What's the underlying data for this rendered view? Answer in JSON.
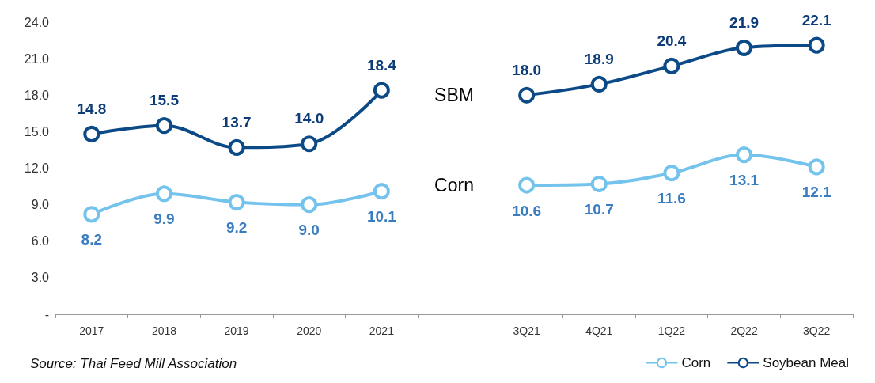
{
  "chart_data": {
    "type": "line",
    "categories": [
      "2017",
      "2018",
      "2019",
      "2020",
      "2021",
      null,
      "3Q21",
      "4Q21",
      "1Q22",
      "2Q22",
      "3Q22"
    ],
    "series": [
      {
        "name": "Corn",
        "color": "#74c3ec",
        "values": [
          8.2,
          9.9,
          9.2,
          9.0,
          10.1,
          null,
          10.6,
          10.7,
          11.6,
          13.1,
          12.1
        ],
        "value_labels": [
          "8.2",
          "9.9",
          "9.2",
          "9.0",
          "10.1",
          null,
          "10.6",
          "10.7",
          "11.6",
          "13.1",
          "12.1"
        ]
      },
      {
        "name": "Soybean Meal",
        "color": "#0b4a86",
        "values": [
          14.8,
          15.5,
          13.7,
          14.0,
          18.4,
          null,
          18.0,
          18.9,
          20.4,
          21.9,
          22.1
        ],
        "value_labels": [
          "14.8",
          "15.5",
          "13.7",
          "14.0",
          "18.4",
          null,
          "18.0",
          "18.9",
          "20.4",
          "21.9",
          "22.1"
        ]
      }
    ],
    "ylim": [
      0,
      24
    ],
    "yticks": [
      {
        "value": 0,
        "label": "-"
      },
      {
        "value": 3,
        "label": "3.0"
      },
      {
        "value": 6,
        "label": "6.0"
      },
      {
        "value": 9,
        "label": "9.0"
      },
      {
        "value": 12,
        "label": "12.0"
      },
      {
        "value": 15,
        "label": "15.0"
      },
      {
        "value": 18,
        "label": "18.0"
      },
      {
        "value": 21,
        "label": "21.0"
      },
      {
        "value": 24,
        "label": "24.0"
      }
    ],
    "marker": "circle",
    "grid": false,
    "legend": "bottom right",
    "annotations": [
      "SBM",
      "Corn",
      "Source: Thai Feed Mill Association"
    ]
  }
}
